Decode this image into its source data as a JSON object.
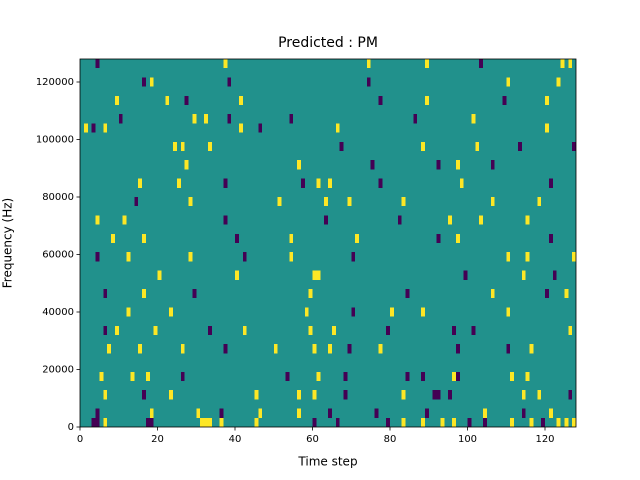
{
  "chart_data": {
    "type": "heatmap",
    "title": "Predicted : PM",
    "xlabel": "Time step",
    "ylabel": "Frequency (Hz)",
    "xlim": [
      0,
      128
    ],
    "ylim": [
      0,
      128000
    ],
    "xticks": [
      0,
      20,
      40,
      60,
      80,
      100,
      120
    ],
    "yticks": [
      0,
      20000,
      40000,
      60000,
      80000,
      100000,
      120000
    ],
    "cell_width": 1,
    "cell_height": 3200,
    "background_value": 0,
    "clim": [
      -1,
      1
    ],
    "colors": [
      "#440154",
      "#21918c",
      "#fde725"
    ],
    "cells": [
      [
        3,
        0,
        -1
      ],
      [
        4,
        0,
        -1
      ],
      [
        6,
        0,
        1
      ],
      [
        17,
        0,
        -1
      ],
      [
        18,
        0,
        -1
      ],
      [
        31,
        0,
        1
      ],
      [
        32,
        0,
        1
      ],
      [
        33,
        0,
        1
      ],
      [
        36,
        0,
        1
      ],
      [
        45,
        0,
        1
      ],
      [
        60,
        0,
        -1
      ],
      [
        66,
        0,
        -1
      ],
      [
        79,
        0,
        -1
      ],
      [
        83,
        0,
        1
      ],
      [
        88,
        0,
        1
      ],
      [
        93,
        0,
        1
      ],
      [
        96,
        0,
        1
      ],
      [
        100,
        0,
        -1
      ],
      [
        104,
        0,
        -1
      ],
      [
        111,
        0,
        1
      ],
      [
        116,
        0,
        1
      ],
      [
        119,
        0,
        -1
      ],
      [
        123,
        0,
        1
      ],
      [
        125,
        0,
        1
      ],
      [
        127,
        0,
        1
      ],
      [
        4,
        3200,
        -1
      ],
      [
        18,
        3200,
        1
      ],
      [
        30,
        3200,
        1
      ],
      [
        36,
        3200,
        -1
      ],
      [
        46,
        3200,
        1
      ],
      [
        56,
        3200,
        1
      ],
      [
        64,
        3200,
        -1
      ],
      [
        76,
        3200,
        -1
      ],
      [
        89,
        3200,
        -1
      ],
      [
        104,
        3200,
        1
      ],
      [
        114,
        3200,
        -1
      ],
      [
        121,
        3200,
        1
      ],
      [
        6,
        9600,
        1
      ],
      [
        16,
        9600,
        -1
      ],
      [
        23,
        9600,
        1
      ],
      [
        45,
        9600,
        1
      ],
      [
        56,
        9600,
        1
      ],
      [
        60,
        9600,
        1
      ],
      [
        68,
        9600,
        -1
      ],
      [
        83,
        9600,
        1
      ],
      [
        91,
        9600,
        -1
      ],
      [
        92,
        9600,
        -1
      ],
      [
        95,
        9600,
        -1
      ],
      [
        114,
        9600,
        1
      ],
      [
        118,
        9600,
        1
      ],
      [
        126,
        9600,
        -1
      ],
      [
        5,
        16000,
        1
      ],
      [
        13,
        16000,
        1
      ],
      [
        17,
        16000,
        1
      ],
      [
        26,
        16000,
        -1
      ],
      [
        53,
        16000,
        -1
      ],
      [
        61,
        16000,
        1
      ],
      [
        68,
        16000,
        -1
      ],
      [
        84,
        16000,
        -1
      ],
      [
        88,
        16000,
        -1
      ],
      [
        96,
        16000,
        1
      ],
      [
        97,
        16000,
        -1
      ],
      [
        111,
        16000,
        1
      ],
      [
        115,
        16000,
        1
      ],
      [
        7,
        25600,
        1
      ],
      [
        15,
        25600,
        1
      ],
      [
        26,
        25600,
        1
      ],
      [
        37,
        25600,
        -1
      ],
      [
        50,
        25600,
        1
      ],
      [
        60,
        25600,
        1
      ],
      [
        64,
        25600,
        1
      ],
      [
        69,
        25600,
        -1
      ],
      [
        77,
        25600,
        1
      ],
      [
        97,
        25600,
        -1
      ],
      [
        110,
        25600,
        -1
      ],
      [
        116,
        25600,
        1
      ],
      [
        6,
        32000,
        -1
      ],
      [
        9,
        32000,
        1
      ],
      [
        19,
        32000,
        1
      ],
      [
        33,
        32000,
        -1
      ],
      [
        42,
        32000,
        1
      ],
      [
        59,
        32000,
        1
      ],
      [
        65,
        32000,
        1
      ],
      [
        79,
        32000,
        -1
      ],
      [
        96,
        32000,
        -1
      ],
      [
        101,
        32000,
        -1
      ],
      [
        126,
        32000,
        1
      ],
      [
        12,
        38400,
        1
      ],
      [
        23,
        38400,
        1
      ],
      [
        58,
        38400,
        1
      ],
      [
        70,
        38400,
        -1
      ],
      [
        80,
        38400,
        1
      ],
      [
        88,
        38400,
        1
      ],
      [
        110,
        38400,
        1
      ],
      [
        6,
        44800,
        -1
      ],
      [
        16,
        44800,
        1
      ],
      [
        29,
        44800,
        -1
      ],
      [
        59,
        44800,
        1
      ],
      [
        84,
        44800,
        -1
      ],
      [
        106,
        44800,
        1
      ],
      [
        120,
        44800,
        -1
      ],
      [
        125,
        44800,
        1
      ],
      [
        20,
        51200,
        1
      ],
      [
        40,
        51200,
        1
      ],
      [
        60,
        51200,
        1
      ],
      [
        61,
        51200,
        1
      ],
      [
        99,
        51200,
        -1
      ],
      [
        114,
        51200,
        1
      ],
      [
        122,
        51200,
        -1
      ],
      [
        4,
        57600,
        -1
      ],
      [
        12,
        57600,
        1
      ],
      [
        28,
        57600,
        1
      ],
      [
        42,
        57600,
        -1
      ],
      [
        54,
        57600,
        1
      ],
      [
        70,
        57600,
        -1
      ],
      [
        110,
        57600,
        1
      ],
      [
        115,
        57600,
        1
      ],
      [
        127,
        57600,
        1
      ],
      [
        8,
        64000,
        1
      ],
      [
        16,
        64000,
        1
      ],
      [
        40,
        64000,
        -1
      ],
      [
        54,
        64000,
        1
      ],
      [
        71,
        64000,
        1
      ],
      [
        92,
        64000,
        -1
      ],
      [
        97,
        64000,
        1
      ],
      [
        121,
        64000,
        -1
      ],
      [
        4,
        70400,
        1
      ],
      [
        11,
        70400,
        1
      ],
      [
        37,
        70400,
        -1
      ],
      [
        63,
        70400,
        -1
      ],
      [
        82,
        70400,
        -1
      ],
      [
        95,
        70400,
        1
      ],
      [
        103,
        70400,
        1
      ],
      [
        115,
        70400,
        1
      ],
      [
        14,
        76800,
        -1
      ],
      [
        28,
        76800,
        1
      ],
      [
        51,
        76800,
        1
      ],
      [
        63,
        76800,
        1
      ],
      [
        69,
        76800,
        1
      ],
      [
        83,
        76800,
        1
      ],
      [
        106,
        76800,
        1
      ],
      [
        118,
        76800,
        1
      ],
      [
        15,
        83200,
        1
      ],
      [
        25,
        83200,
        1
      ],
      [
        37,
        83200,
        -1
      ],
      [
        57,
        83200,
        -1
      ],
      [
        61,
        83200,
        1
      ],
      [
        64,
        83200,
        1
      ],
      [
        77,
        83200,
        -1
      ],
      [
        98,
        83200,
        1
      ],
      [
        121,
        83200,
        -1
      ],
      [
        27,
        89600,
        1
      ],
      [
        56,
        89600,
        1
      ],
      [
        75,
        89600,
        -1
      ],
      [
        92,
        89600,
        -1
      ],
      [
        97,
        89600,
        1
      ],
      [
        106,
        89600,
        -1
      ],
      [
        24,
        96000,
        1
      ],
      [
        26,
        96000,
        1
      ],
      [
        33,
        96000,
        1
      ],
      [
        67,
        96000,
        -1
      ],
      [
        88,
        96000,
        1
      ],
      [
        102,
        96000,
        1
      ],
      [
        113,
        96000,
        -1
      ],
      [
        127,
        96000,
        -1
      ],
      [
        1,
        102400,
        1
      ],
      [
        3,
        102400,
        -1
      ],
      [
        6,
        102400,
        1
      ],
      [
        41,
        102400,
        1
      ],
      [
        46,
        102400,
        -1
      ],
      [
        66,
        102400,
        1
      ],
      [
        120,
        102400,
        1
      ],
      [
        10,
        105600,
        -1
      ],
      [
        29,
        105600,
        1
      ],
      [
        32,
        105600,
        1
      ],
      [
        38,
        105600,
        -1
      ],
      [
        54,
        105600,
        -1
      ],
      [
        86,
        105600,
        -1
      ],
      [
        101,
        105600,
        1
      ],
      [
        9,
        112000,
        1
      ],
      [
        22,
        112000,
        1
      ],
      [
        27,
        112000,
        -1
      ],
      [
        41,
        112000,
        1
      ],
      [
        77,
        112000,
        -1
      ],
      [
        89,
        112000,
        1
      ],
      [
        109,
        112000,
        -1
      ],
      [
        120,
        112000,
        1
      ],
      [
        16,
        118400,
        -1
      ],
      [
        18,
        118400,
        1
      ],
      [
        38,
        118400,
        -1
      ],
      [
        74,
        118400,
        -1
      ],
      [
        110,
        118400,
        1
      ],
      [
        123,
        118400,
        1
      ],
      [
        4,
        124800,
        -1
      ],
      [
        37,
        124800,
        1
      ],
      [
        74,
        124800,
        1
      ],
      [
        89,
        124800,
        1
      ],
      [
        103,
        124800,
        -1
      ],
      [
        124,
        124800,
        1
      ],
      [
        126,
        124800,
        1
      ]
    ]
  }
}
